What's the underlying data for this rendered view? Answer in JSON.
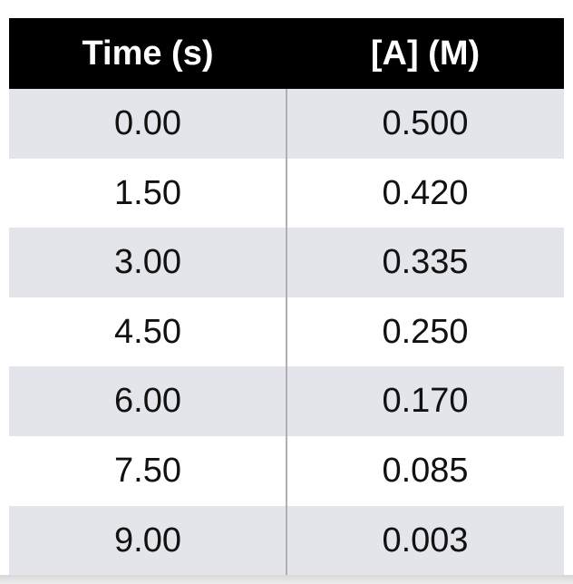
{
  "table": {
    "headers": [
      "Time (s)",
      "[A] (M)"
    ],
    "rows": [
      [
        "0.00",
        "0.500"
      ],
      [
        "1.50",
        "0.420"
      ],
      [
        "3.00",
        "0.335"
      ],
      [
        "4.50",
        "0.250"
      ],
      [
        "6.00",
        "0.170"
      ],
      [
        "7.50",
        "0.085"
      ],
      [
        "9.00",
        "0.003"
      ]
    ],
    "colors": {
      "header_bg": "#000000",
      "header_text": "#ffffff",
      "shaded_row": "#e4e5ea",
      "divider": "#b0b0b4"
    }
  }
}
